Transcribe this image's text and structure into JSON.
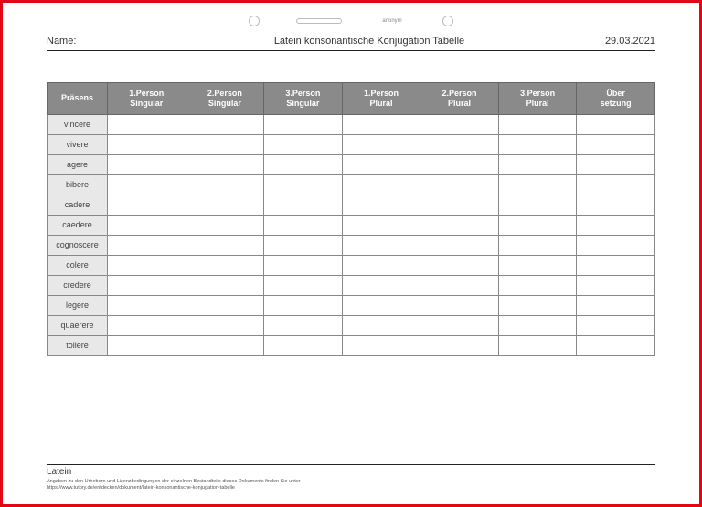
{
  "top": {
    "anonym": "anonym"
  },
  "header": {
    "name_label": "Name:",
    "title": "Latein konsonantische Konjugation Tabelle",
    "date": "29.03.2021"
  },
  "table": {
    "columns": [
      "Präsens",
      "1.Person Singular",
      "2.Person Singular",
      "3.Person Singular",
      "1.Person Plural",
      "2.Person Plural",
      "3.Person Plural",
      "Über setzung"
    ],
    "rows": [
      {
        "label": "vincere",
        "cells": [
          "",
          "",
          "",
          "",
          "",
          "",
          ""
        ]
      },
      {
        "label": "vivere",
        "cells": [
          "",
          "",
          "",
          "",
          "",
          "",
          ""
        ]
      },
      {
        "label": "agere",
        "cells": [
          "",
          "",
          "",
          "",
          "",
          "",
          ""
        ]
      },
      {
        "label": "bibere",
        "cells": [
          "",
          "",
          "",
          "",
          "",
          "",
          ""
        ]
      },
      {
        "label": "cadere",
        "cells": [
          "",
          "",
          "",
          "",
          "",
          "",
          ""
        ]
      },
      {
        "label": "caedere",
        "cells": [
          "",
          "",
          "",
          "",
          "",
          "",
          ""
        ]
      },
      {
        "label": "cognoscere",
        "cells": [
          "",
          "",
          "",
          "",
          "",
          "",
          ""
        ]
      },
      {
        "label": "colere",
        "cells": [
          "",
          "",
          "",
          "",
          "",
          "",
          ""
        ]
      },
      {
        "label": "credere",
        "cells": [
          "",
          "",
          "",
          "",
          "",
          "",
          ""
        ]
      },
      {
        "label": "legere",
        "cells": [
          "",
          "",
          "",
          "",
          "",
          "",
          ""
        ]
      },
      {
        "label": "quaerere",
        "cells": [
          "",
          "",
          "",
          "",
          "",
          "",
          ""
        ]
      },
      {
        "label": "tollere",
        "cells": [
          "",
          "",
          "",
          "",
          "",
          "",
          ""
        ]
      }
    ],
    "header_bg": "#8a8a8a",
    "header_fg": "#ffffff",
    "row_label_bg": "#e8e8e8",
    "border_color": "#888888"
  },
  "footer": {
    "title": "Latein",
    "line1": "Angaben zu den Urhebern und Lizenzbedingungen der einzelnen Bestandteile dieses Dokuments finden Sie unter",
    "line2": "https://www.tutory.de/entdecken/dokument/latein-konsonantische-konjugation-tabelle"
  }
}
